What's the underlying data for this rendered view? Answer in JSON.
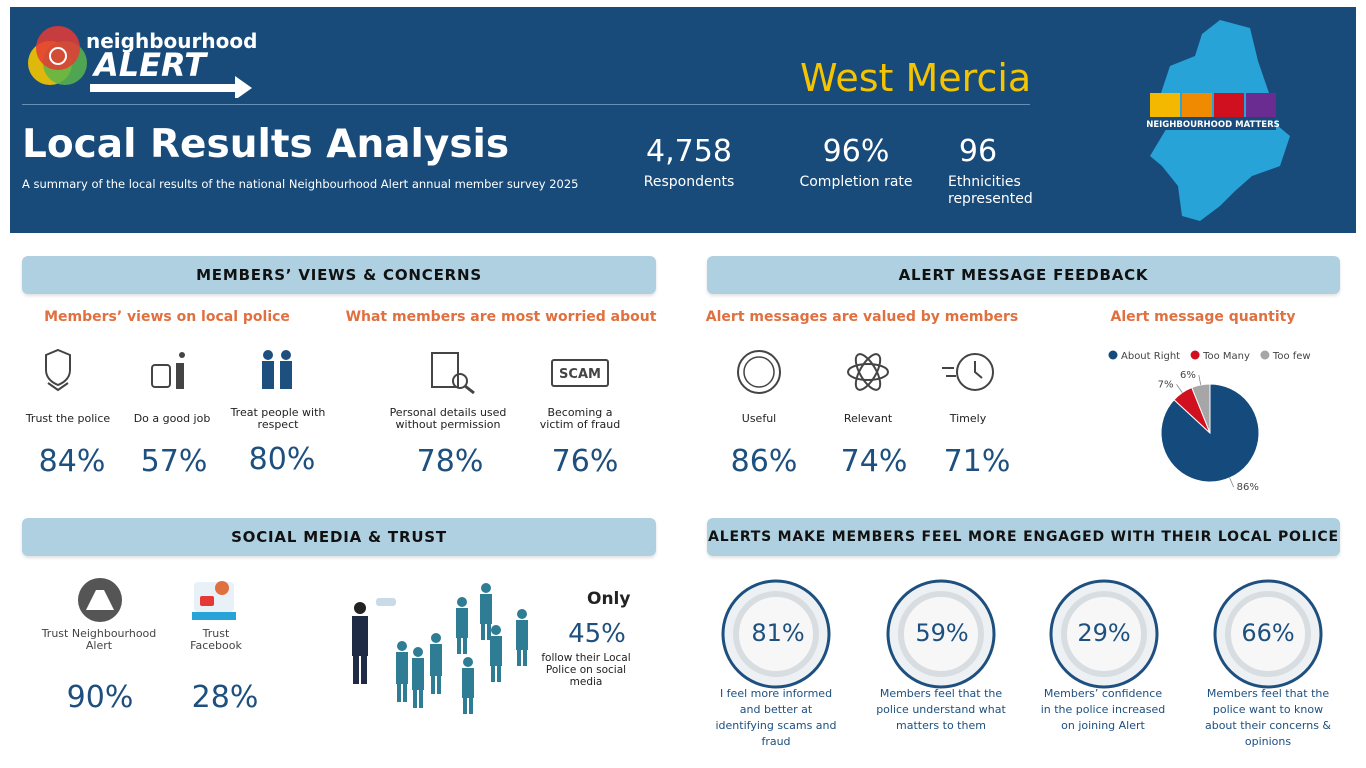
{
  "header": {
    "logo_top": "neighbourhood",
    "logo_bottom": "ALERT",
    "region": "West Mercia",
    "title": "Local Results Analysis",
    "subtitle": "A summary of the local results of the national Neighbourhood Alert annual member survey 2025",
    "stats": [
      {
        "value": "4,758",
        "label": "Respondents"
      },
      {
        "value": "96%",
        "label": "Completion rate"
      },
      {
        "value": "96",
        "label": "Ethnicities represented"
      }
    ],
    "badge": "NEIGHBOURHOOD MATTERS"
  },
  "members_views": {
    "heading": "MEMBERS’ VIEWS & CONCERNS",
    "police": {
      "title": "Members’ views on local police",
      "items": [
        {
          "label": "Trust the police",
          "value": "84%"
        },
        {
          "label": "Do a good job",
          "value": "57%"
        },
        {
          "label": "Treat people with respect",
          "value": "80%"
        }
      ]
    },
    "worries": {
      "title": "What members are most worried about",
      "scam_icon": "SCAM",
      "items": [
        {
          "label": "Personal details used without permission",
          "value": "78%"
        },
        {
          "label": "Becoming a victim of fraud",
          "value": "76%"
        }
      ]
    }
  },
  "alert_feedback": {
    "heading": "ALERT MESSAGE FEEDBACK",
    "valued": {
      "title": "Alert messages are valued by members",
      "items": [
        {
          "label": "Useful",
          "value": "86%"
        },
        {
          "label": "Relevant",
          "value": "74%"
        },
        {
          "label": "Timely",
          "value": "71%"
        }
      ]
    }
  },
  "chart_data": {
    "type": "pie",
    "title": "Alert message quantity",
    "categories": [
      "About Right",
      "Too Many",
      "Too few"
    ],
    "values": [
      86,
      7,
      6
    ],
    "value_labels": [
      "86%",
      "7%",
      "6%"
    ],
    "colors": [
      "#154a7c",
      "#d0101f",
      "#a6a6a6"
    ],
    "legend": "top"
  },
  "social_media": {
    "heading": "SOCIAL MEDIA & TRUST",
    "items": [
      {
        "label": "Trust Neighbourhood Alert",
        "value": "90%"
      },
      {
        "label": "Trust Facebook",
        "value": "28%"
      }
    ],
    "only": "Only",
    "follow_value": "45%",
    "follow_label": "follow their Local Police on social media"
  },
  "engagement": {
    "heading": "ALERTS MAKE MEMBERS FEEL MORE ENGAGED WITH THEIR LOCAL POLICE",
    "items": [
      {
        "value": "81%",
        "label": "I feel more informed and better at identifying scams and fraud"
      },
      {
        "value": "59%",
        "label": "Members feel that the police understand what matters to them"
      },
      {
        "value": "29%",
        "label": "Members’ confidence in the police increased on joining Alert"
      },
      {
        "value": "66%",
        "label": "Members feel that the police want to know about their concerns & opinions"
      }
    ]
  }
}
